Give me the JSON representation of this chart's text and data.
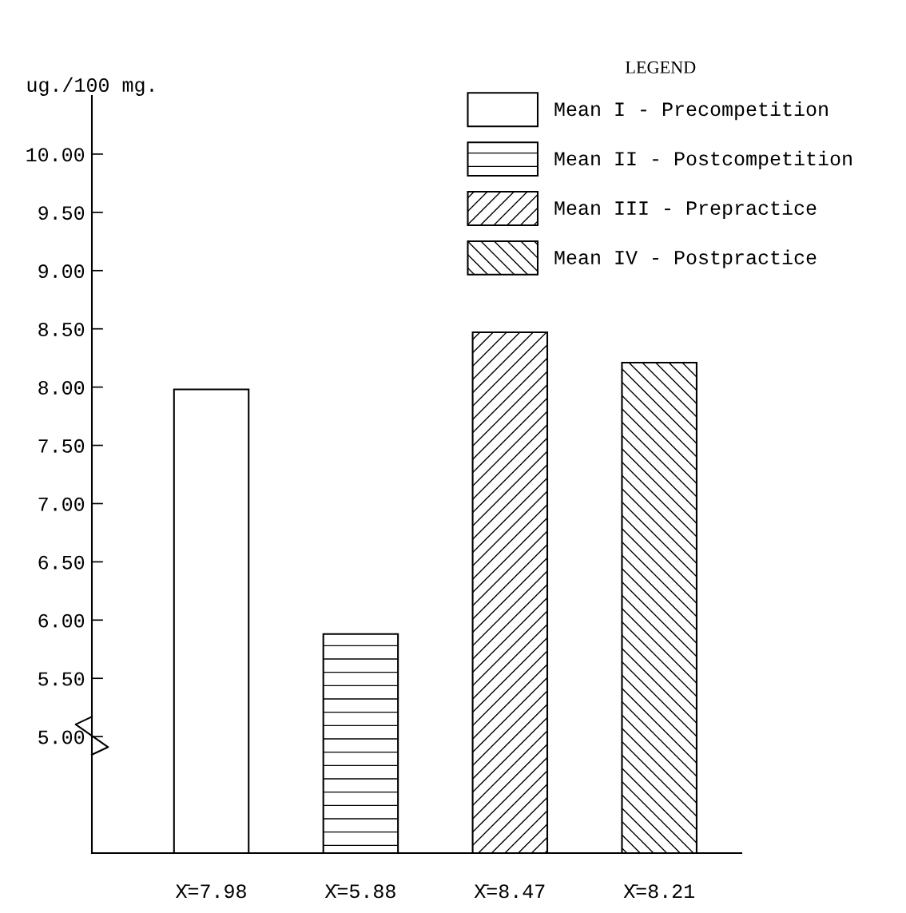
{
  "chart_data": {
    "type": "bar",
    "ylabel": "ug./100 mg.",
    "legend_title": "LEGEND",
    "categories": [
      null,
      null,
      null,
      null
    ],
    "series": [
      {
        "name": "Mean I - Precompetition",
        "color": "#ffffff",
        "values": [
          7.98,
          null,
          null,
          null
        ]
      },
      {
        "name": "Mean II - Postcompetition",
        "color": "#000000",
        "values": [
          null,
          5.88,
          null,
          null
        ]
      },
      {
        "name": "Mean III - Prepractice",
        "color": "#000000",
        "values": [
          null,
          null,
          8.47,
          null
        ]
      },
      {
        "name": "Mean IV - Postpractice",
        "color": "#000000",
        "values": [
          null,
          null,
          null,
          8.21
        ]
      }
    ],
    "value_labels": [
      "X̄=7.98",
      "X̄=5.88",
      "X̄=8.47",
      "X̄=8.21"
    ],
    "ylim": [
      4.0,
      10.5
    ],
    "yticks": [
      {
        "value": 5.0,
        "label": "5.00"
      },
      {
        "value": 5.5,
        "label": "5.50"
      },
      {
        "value": 6.0,
        "label": "6.00"
      },
      {
        "value": 6.5,
        "label": "6.50"
      },
      {
        "value": 7.0,
        "label": "7.00"
      },
      {
        "value": 7.5,
        "label": "7.50"
      },
      {
        "value": 8.0,
        "label": "8.00"
      },
      {
        "value": 8.5,
        "label": "8.50"
      },
      {
        "value": 9.0,
        "label": "9.00"
      },
      {
        "value": 9.5,
        "label": "9.50"
      },
      {
        "value": 10.0,
        "label": "10.00"
      }
    ],
    "legend": "top right",
    "grid": false
  }
}
